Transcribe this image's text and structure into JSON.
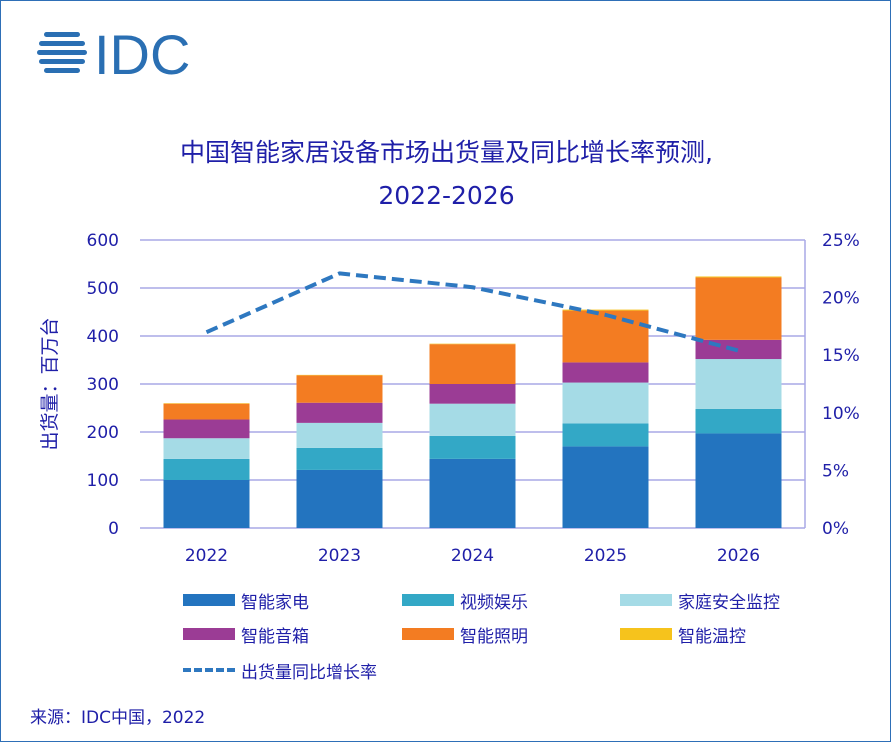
{
  "logo_text": "IDC",
  "chart_data": {
    "type": "bar",
    "stacked": true,
    "title_line1": "中国智能家居设备市场出货量及同比增长率预测,",
    "title_line2": "2022-2026",
    "ylabel": "出货量：百万台",
    "categories": [
      "2022",
      "2023",
      "2024",
      "2025",
      "2026"
    ],
    "ylim": [
      0,
      600
    ],
    "yticks": [
      "0",
      "100",
      "200",
      "300",
      "400",
      "500",
      "600"
    ],
    "y2lim": [
      0,
      25
    ],
    "y2ticks": [
      "0%",
      "5%",
      "10%",
      "15%",
      "20%",
      "25%"
    ],
    "grid": true,
    "legend_position": "bottom",
    "series": [
      {
        "name": "智能家电",
        "color": "#2374bf",
        "values": [
          100,
          121,
          144,
          170,
          197
        ]
      },
      {
        "name": "视频娱乐",
        "color": "#33a8c6",
        "values": [
          44,
          46,
          48,
          48,
          51
        ]
      },
      {
        "name": "家庭安全监控",
        "color": "#a5dbe6",
        "values": [
          43,
          52,
          67,
          85,
          104
        ]
      },
      {
        "name": "智能音箱",
        "color": "#9b3c95",
        "values": [
          39,
          42,
          41,
          42,
          40
        ]
      },
      {
        "name": "智能照明",
        "color": "#f37c22",
        "values": [
          33,
          57,
          83,
          108,
          130
        ]
      },
      {
        "name": "智能温控",
        "color": "#f6c31c",
        "values": [
          1,
          1,
          1,
          2,
          2
        ]
      }
    ],
    "line_series": {
      "name": "出货量同比增长率",
      "color": "#2e78c0",
      "axis": "right",
      "values": [
        17.0,
        22.1,
        20.9,
        18.5,
        15.4
      ]
    }
  },
  "source": "来源：IDC中国，2022"
}
